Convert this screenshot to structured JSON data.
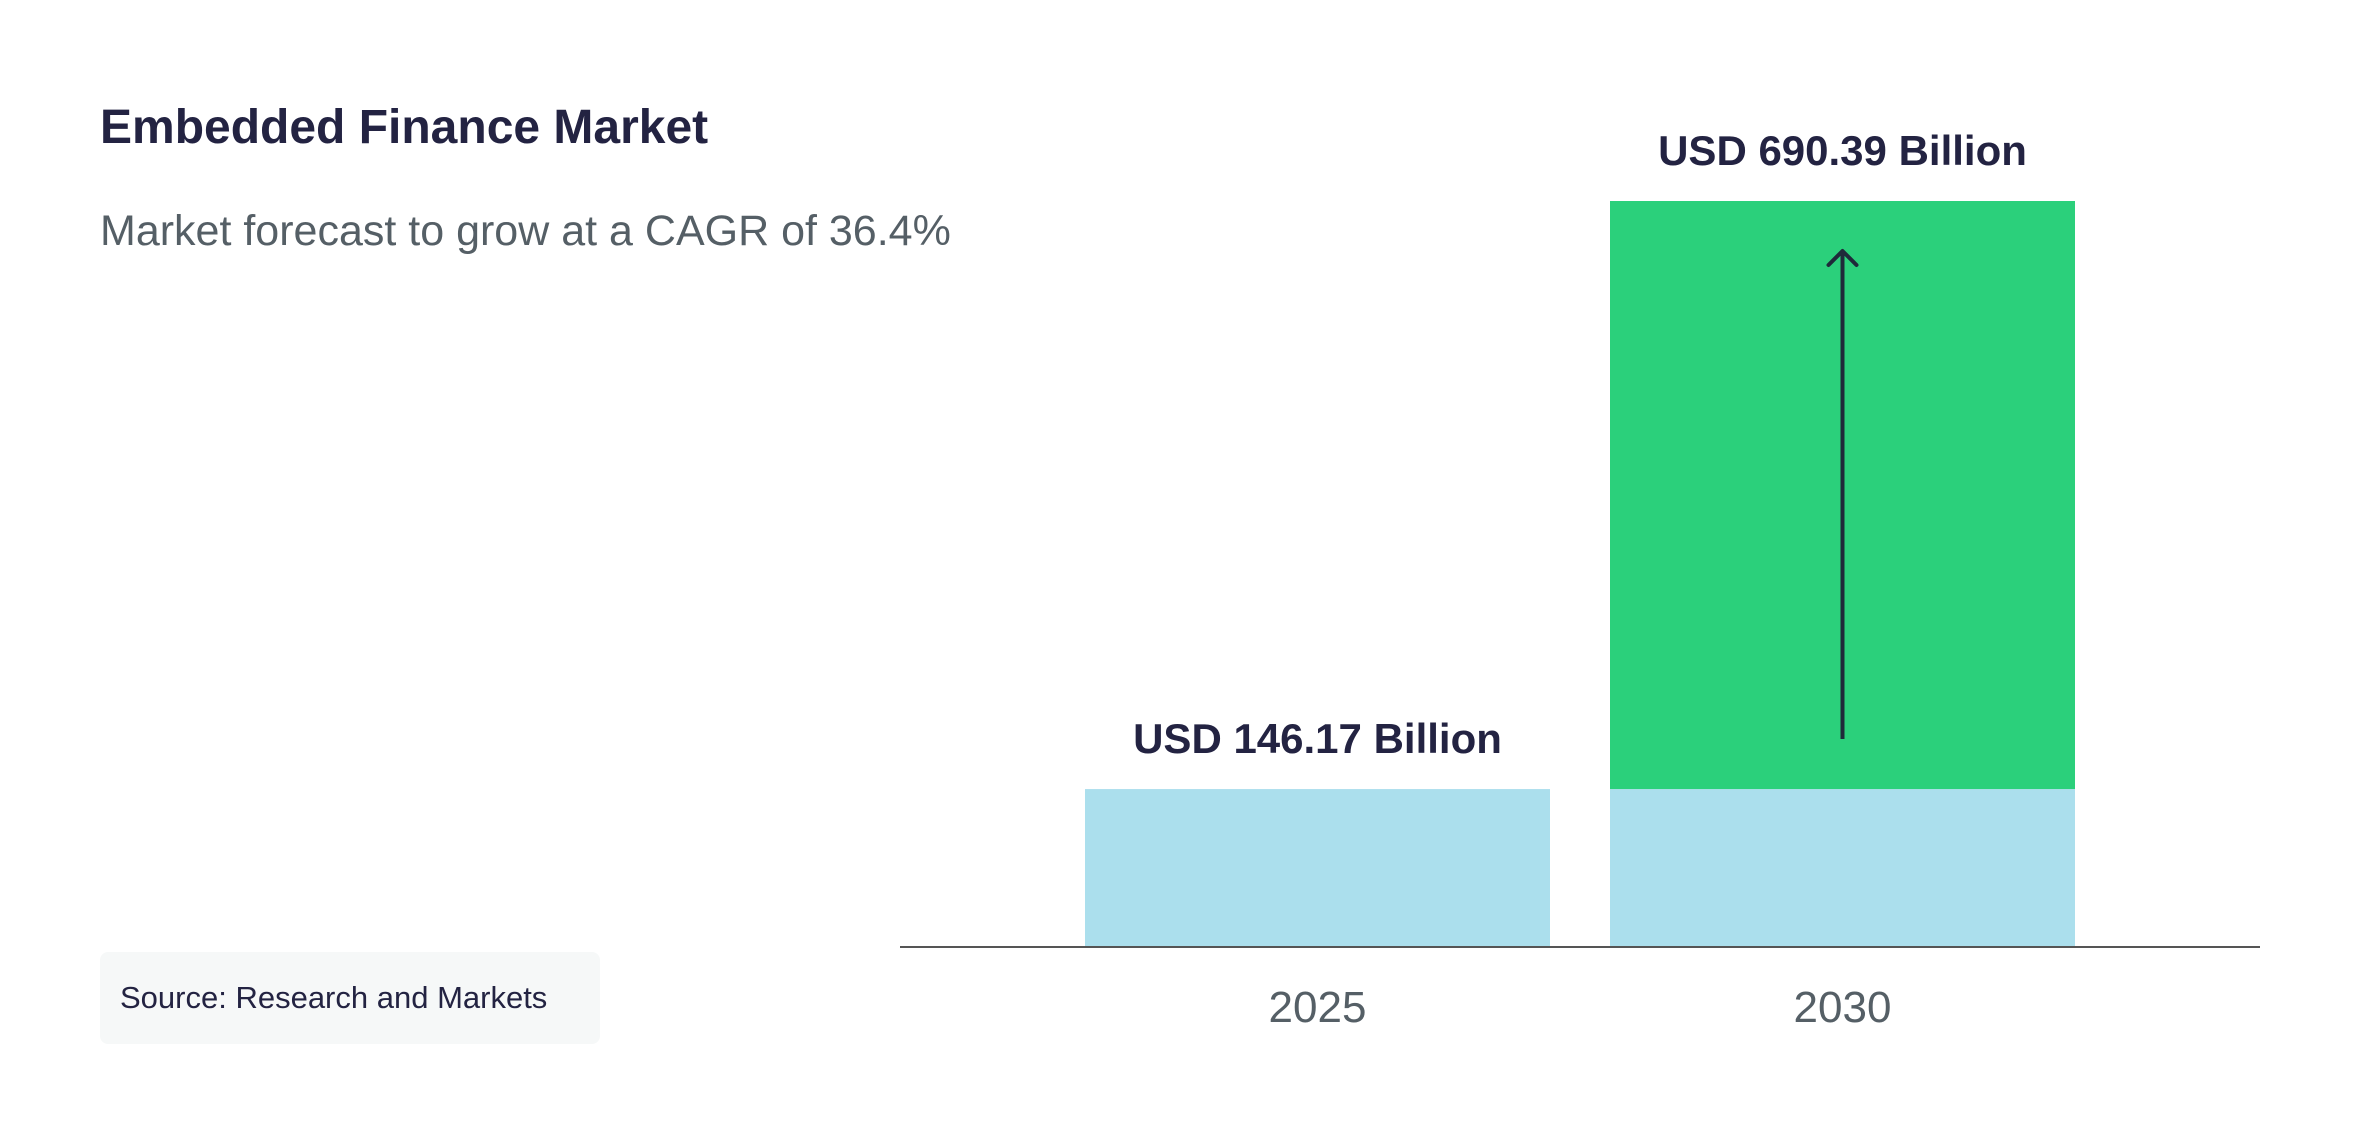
{
  "title": "Embedded Finance Market",
  "subtitle": "Market forecast to grow at a CAGR of 36.4%",
  "source": "Source: Research and Markets",
  "colors": {
    "base": "#abdfed",
    "growth": "#2bd07b",
    "text_dark": "#232342",
    "text_muted": "#555f66",
    "axis": "#555555",
    "arrow": "#1f2a3a",
    "source_bg": "#f6f8f8"
  },
  "chart_data": {
    "type": "bar",
    "categories": [
      "2025",
      "2030"
    ],
    "values": [
      146.17,
      690.39
    ],
    "value_labels": [
      "USD 146.17 Billion",
      "USD 690.39 Billion"
    ],
    "unit": "USD Billion",
    "cagr": "36.4%",
    "stacked_base": 146.17,
    "annotation": "up-arrow-icon",
    "grid": false
  }
}
